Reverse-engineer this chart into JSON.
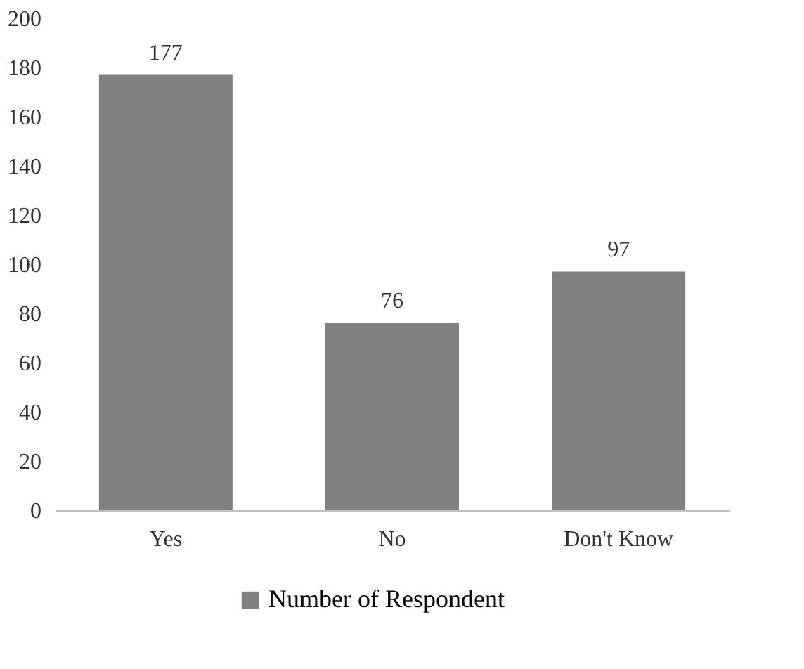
{
  "chart_data": {
    "type": "bar",
    "categories": [
      "Yes",
      "No",
      "Don't Know"
    ],
    "series": [
      {
        "name": "Number of Respondent",
        "color": "#808080",
        "values": [
          177,
          76,
          97
        ]
      }
    ],
    "ylim": [
      0,
      200
    ],
    "yticks": [
      0,
      20,
      40,
      60,
      80,
      100,
      120,
      140,
      160,
      180,
      200
    ],
    "data_labels": true,
    "legend": "bottom",
    "grid": false
  }
}
